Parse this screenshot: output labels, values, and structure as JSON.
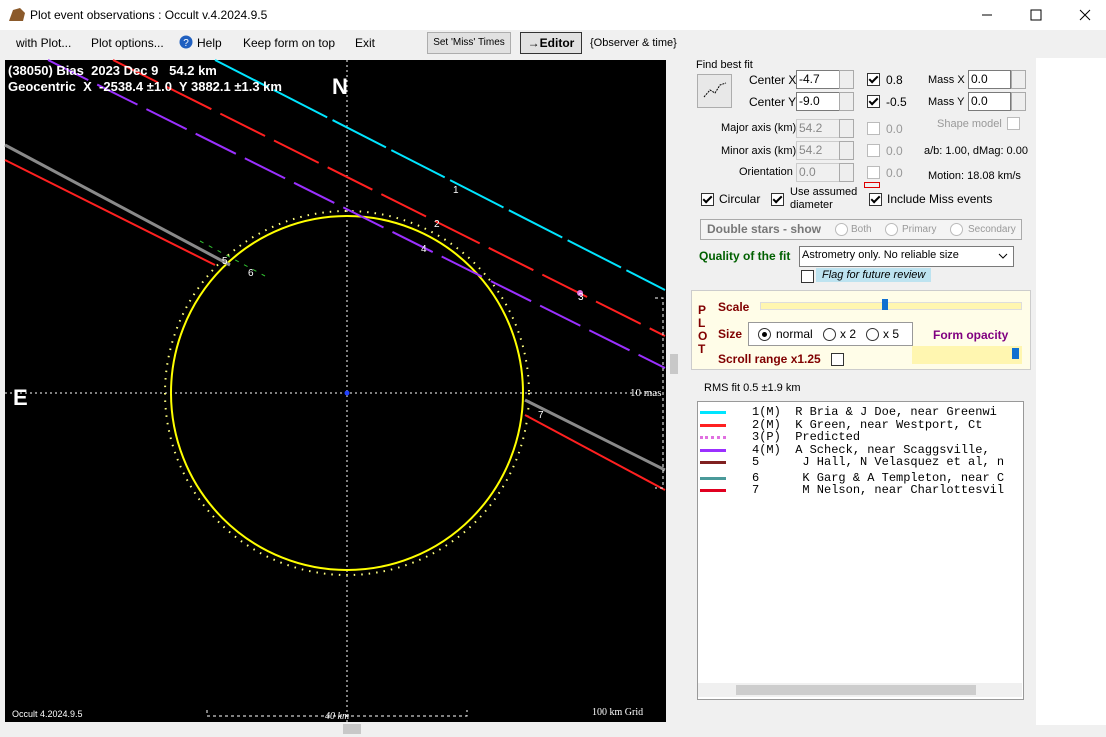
{
  "window": {
    "title": "Plot event observations : Occult v.4.2024.9.5"
  },
  "menu": [
    "with Plot...",
    "Plot options...",
    "Help",
    "Keep form on top",
    "Exit"
  ],
  "toolbar": [
    "Set 'Miss' Times",
    "→Editor",
    "{Observer & time}"
  ],
  "plot": {
    "header": [
      "(38050) Bias  2023 Dec 9   54.2 km",
      "Geocentric  X  -2538.4 ±1.0  Y 3882.1 ±1.3 km"
    ],
    "north": "N",
    "east": "E",
    "angular_scale": "10 mas",
    "version": "Occult 4.2024.9.5",
    "scale_bar": "40 km",
    "grid": "100 km Grid",
    "chord_labels": [
      "1",
      "2",
      "3",
      "4",
      "5",
      "6",
      "7"
    ]
  },
  "fit": {
    "title": "Find best fit",
    "center_x": {
      "label": "Center X",
      "value": "-4.7"
    },
    "center_y": {
      "label": "Center Y",
      "value": "-9.0"
    },
    "weight_x": "0.8",
    "weight_y": "-0.5",
    "mass_x": {
      "label": "Mass X",
      "value": "0.0"
    },
    "mass_y": {
      "label": "Mass Y",
      "value": "0.0"
    },
    "major_axis": {
      "label": "Major axis (km)",
      "value": "54.2",
      "step": "0.0"
    },
    "minor_axis": {
      "label": "Minor axis (km)",
      "value": "54.2",
      "step": "0.0"
    },
    "orientation": {
      "label": "Orientation",
      "value": "0.0",
      "step": "0.0"
    },
    "shape_model": "Shape model",
    "ratio": "a/b: 1.00, dMag: 0.00",
    "motion": "Motion: 18.08 km/s",
    "circular": "Circular",
    "assumed_diameter": "Use assumed diameter",
    "include_miss": "Include Miss events",
    "double_stars": "Double stars - show",
    "double_options": [
      "Both",
      "Primary",
      "Secondary"
    ],
    "quality_label": "Quality of the fit",
    "quality": "Astrometry only. No reliable size",
    "flag": "Flag for future review"
  },
  "plot_controls": {
    "letters": [
      "P",
      "L",
      "O",
      "T"
    ],
    "scale": "Scale",
    "size": "Size",
    "sizes": [
      "normal",
      "x 2",
      "x 5"
    ],
    "opacity": "Form opacity",
    "scroll_range": "Scroll range x1.25"
  },
  "rms": "RMS fit 0.5 ±1.9 km",
  "observers": [
    {
      "text": "1(M)  R Bria & J Doe, near Greenwi",
      "color": "#00e5ff"
    },
    {
      "text": "2(M)  K Green, near Westport, Ct",
      "color": "#ff2020"
    },
    {
      "text": "3(P)  Predicted",
      "color": "#e070e0"
    },
    {
      "text": "4(M)  A Scheck, near Scaggsville,",
      "color": "#9b30ff"
    },
    {
      "text": "5      J Hall, N Velasquez et al, n",
      "color": "#802020"
    },
    {
      "text": "6      K Garg & A Templeton, near C",
      "color": "#4a9a9a"
    },
    {
      "text": "7      M Nelson, near Charlottesvil",
      "color": "#e00020"
    }
  ]
}
